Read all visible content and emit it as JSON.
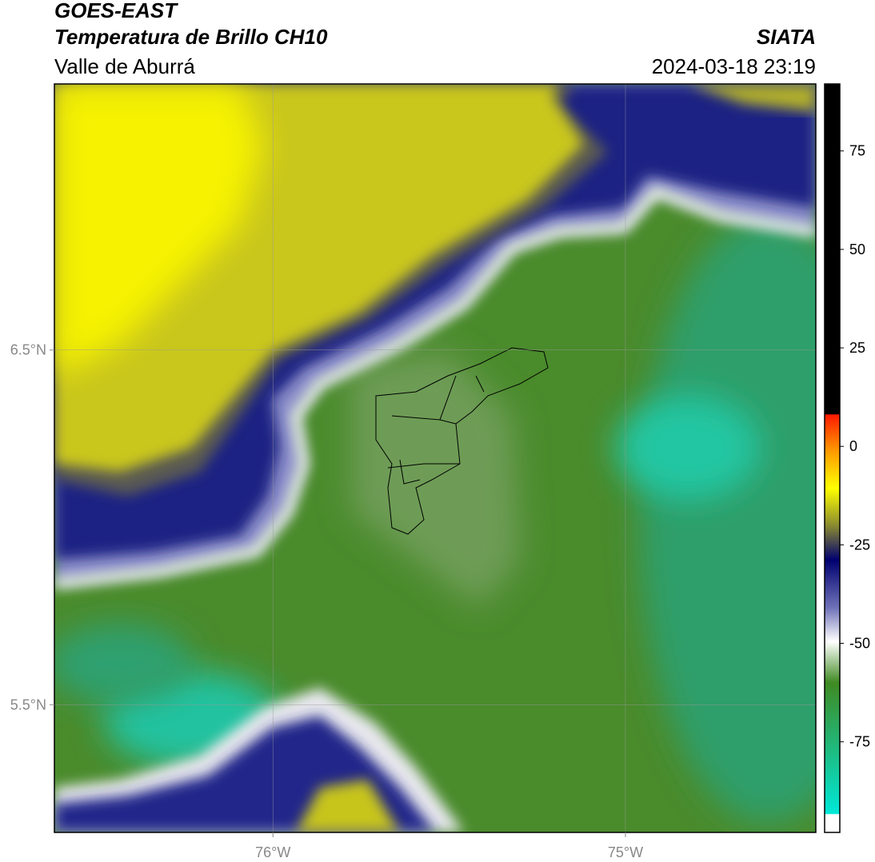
{
  "header": {
    "title": "GOES-EAST",
    "subtitle": "Temperatura de Brillo CH10",
    "region": "Valle de Aburrá",
    "source": "SIATA",
    "datetime": "2024-03-18 23:19"
  },
  "map": {
    "xlim": [
      -76.62,
      -74.46
    ],
    "ylim": [
      5.14,
      7.25
    ],
    "xticks": [
      {
        "value": -76,
        "label": "76°W"
      },
      {
        "value": -75,
        "label": "75°W"
      }
    ],
    "yticks": [
      {
        "value": 6.5,
        "label": "6.5°N"
      },
      {
        "value": 5.5,
        "label": "5.5°N"
      }
    ],
    "grid": true
  },
  "colorbar": {
    "lim": [
      -98,
      92
    ],
    "ticks": [
      75,
      50,
      25,
      0,
      -25,
      -50,
      -75
    ]
  }
}
